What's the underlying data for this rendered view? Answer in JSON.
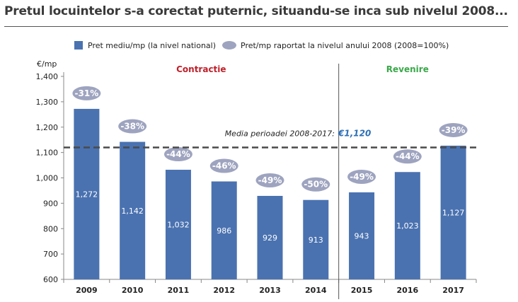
{
  "title": "Pretul locuintelor s-a corectat puternic, situandu-se inca sub nivelul 2008...",
  "colors": {
    "bar": "#4a72b0",
    "bubble": "#9ea4bf",
    "contractie": "#c0202a",
    "revenire": "#3aa84a",
    "avg_value": "#2d6fb7"
  },
  "chart_data": {
    "type": "bar",
    "ylabel": "€/mp",
    "ylim": [
      600,
      1400
    ],
    "yticks": [
      "600",
      "700",
      "800",
      "900",
      "1,000",
      "1,100",
      "1,200",
      "1,300",
      "1,400"
    ],
    "categories": [
      "2009",
      "2010",
      "2011",
      "2012",
      "2013",
      "2014",
      "2015",
      "2016",
      "2017"
    ],
    "series": [
      {
        "name": "Pret mediu/mp (la nivel national)",
        "values": [
          1272,
          1142,
          1032,
          986,
          929,
          913,
          943,
          1023,
          1127
        ],
        "labels": [
          "1,272",
          "1,142",
          "1,032",
          "986",
          "929",
          "913",
          "943",
          "1,023",
          "1,127"
        ]
      },
      {
        "name": "Pret/mp raportat la nivelul anului 2008 (2008=100%)",
        "values": [
          -31,
          -38,
          -44,
          -46,
          -49,
          -50,
          -49,
          -44,
          -39
        ],
        "labels": [
          "-31%",
          "-38%",
          "-44%",
          "-46%",
          "-49%",
          "-50%",
          "-49%",
          "-44%",
          "-39%"
        ]
      }
    ],
    "sections": [
      {
        "label": "Contractie",
        "from": "2009",
        "to": "2014"
      },
      {
        "label": "Revenire",
        "from": "2015",
        "to": "2017"
      }
    ],
    "average": {
      "label": "Media perioadei 2008-2017:",
      "value": 1120,
      "value_label": "€1,120"
    },
    "legend_position": "top"
  }
}
